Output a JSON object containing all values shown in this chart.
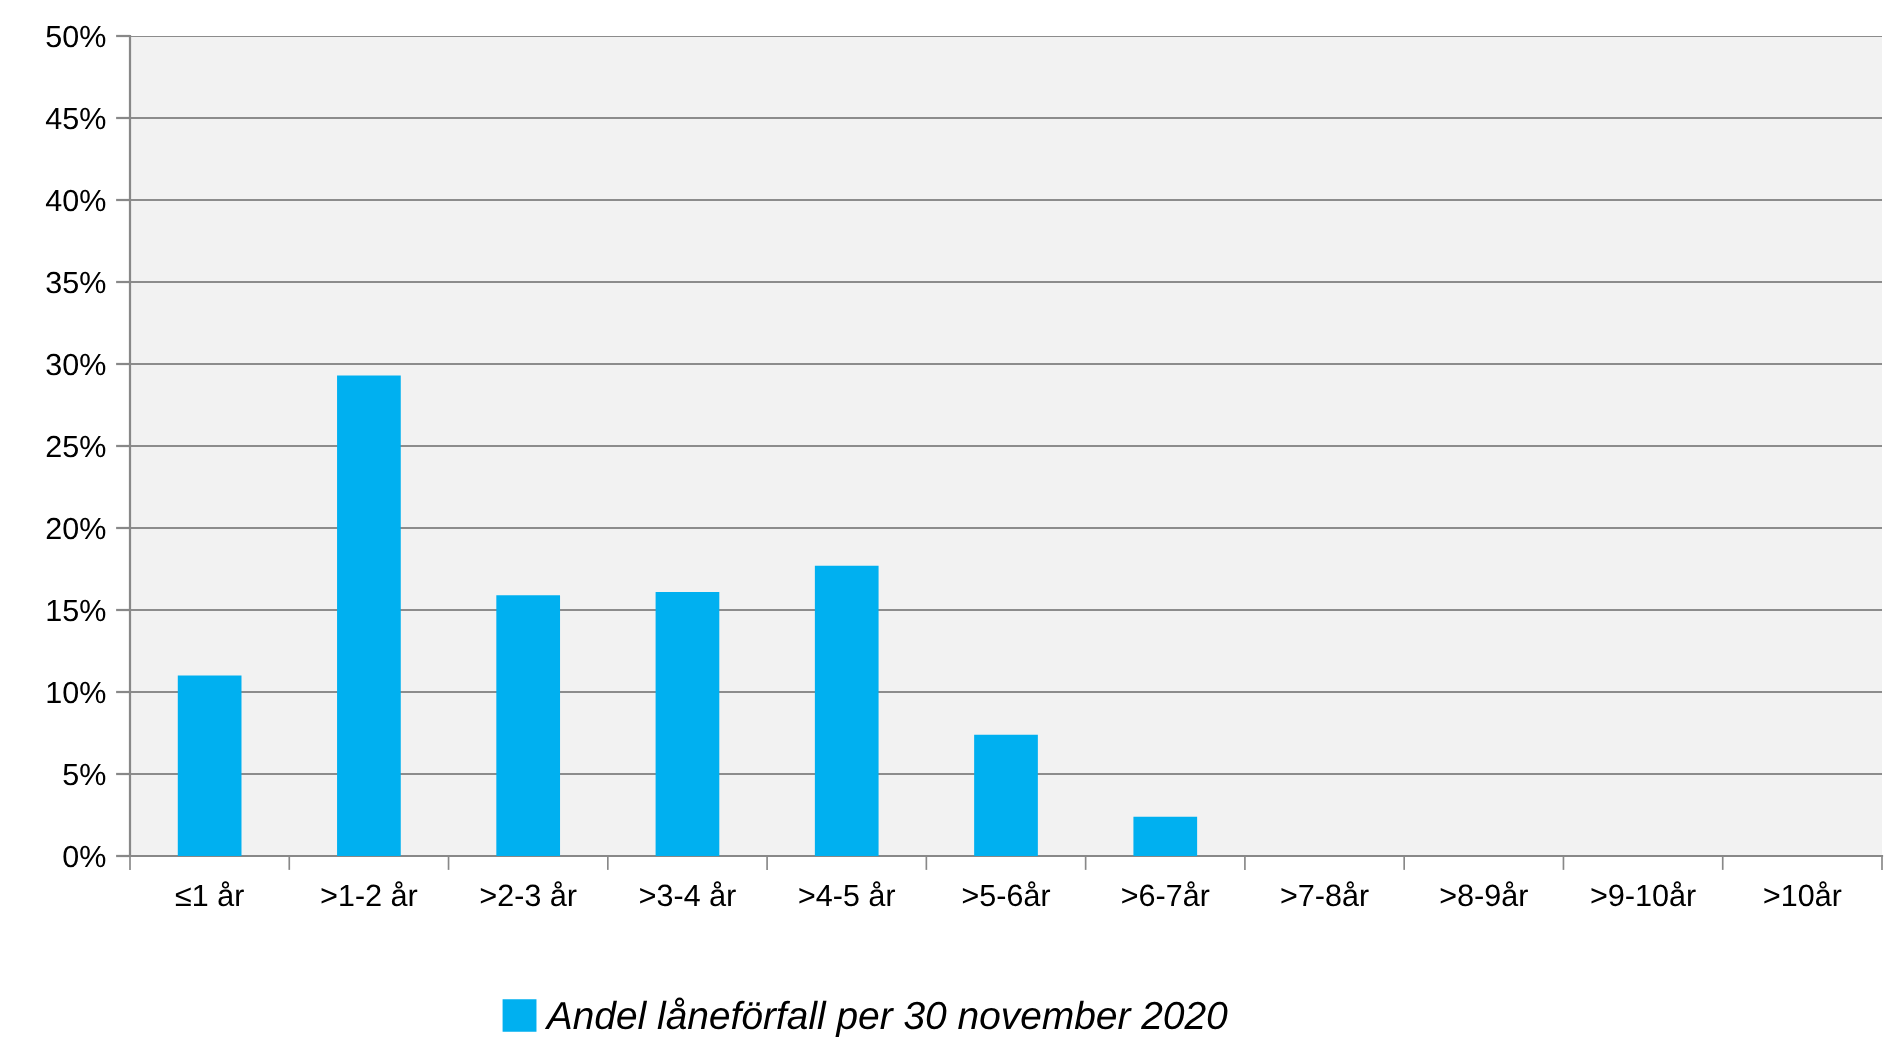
{
  "chart_data": {
    "type": "bar",
    "categories": [
      "≤1 år",
      ">1-2 år",
      ">2-3 år",
      ">3-4 år",
      ">4-5 år",
      ">5-6år",
      ">6-7år",
      ">7-8år",
      ">8-9år",
      ">9-10år",
      ">10år"
    ],
    "series": [
      {
        "name": "Andel låneförfall per 30 november 2020",
        "color": "#00b0f0",
        "values": [
          11.0,
          29.3,
          15.9,
          16.1,
          17.7,
          7.4,
          2.4,
          0,
          0,
          0,
          0
        ]
      }
    ],
    "ylim": [
      0,
      50
    ],
    "yticks": [
      {
        "value": 0,
        "label": "0%"
      },
      {
        "value": 5,
        "label": "5%"
      },
      {
        "value": 10,
        "label": "10%"
      },
      {
        "value": 15,
        "label": "15%"
      },
      {
        "value": 20,
        "label": "20%"
      },
      {
        "value": 25,
        "label": "25%"
      },
      {
        "value": 30,
        "label": "30%"
      },
      {
        "value": 35,
        "label": "35%"
      },
      {
        "value": 40,
        "label": "40%"
      },
      {
        "value": 45,
        "label": "45%"
      },
      {
        "value": 50,
        "label": "50%"
      }
    ],
    "grid": "y",
    "legend": "bottom"
  }
}
